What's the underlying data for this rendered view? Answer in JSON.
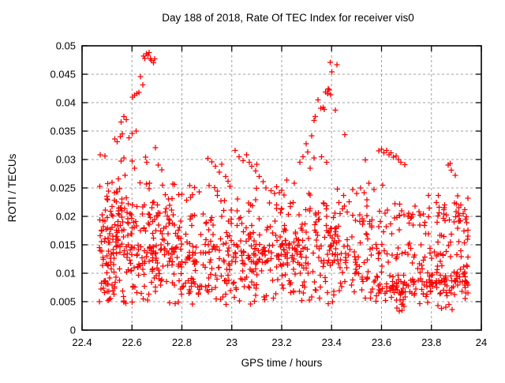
{
  "chart_data": {
    "type": "scatter",
    "title": "Day 188 of 2018, Rate Of TEC Index for receiver vis0",
    "xlabel": "GPS time / hours",
    "ylabel": "ROTI / TECUs",
    "xlim": [
      22.4,
      24
    ],
    "ylim": [
      0,
      0.05
    ],
    "xticks": [
      22.4,
      22.6,
      22.8,
      23,
      23.2,
      23.4,
      23.6,
      23.8,
      24
    ],
    "xtick_labels": [
      "22.4",
      "22.6",
      "22.8",
      "23",
      "23.2",
      "23.4",
      "23.6",
      "23.8",
      "24"
    ],
    "yticks": [
      0,
      0.005,
      0.01,
      0.015,
      0.02,
      0.025,
      0.03,
      0.035,
      0.04,
      0.045,
      0.05
    ],
    "ytick_labels": [
      "0",
      "0.005",
      "0.01",
      "0.015",
      "0.02",
      "0.025",
      "0.03",
      "0.035",
      "0.04",
      "0.045",
      "0.05"
    ],
    "grid": true,
    "grid_style": "dashed",
    "legend": "none",
    "colors": {
      "marker": "#ff0000",
      "grid": "#a0a0a0",
      "frame": "#000000",
      "background": "#ffffff"
    },
    "marker": {
      "shape": "plus",
      "size": 7
    },
    "series": [
      {
        "name": "ROTI",
        "seed": 1880718,
        "points": [
          [
            22.646,
            0.0482
          ],
          [
            22.652,
            0.0478
          ],
          [
            22.658,
            0.0486
          ],
          [
            22.664,
            0.0483
          ],
          [
            22.668,
            0.0488
          ],
          [
            22.673,
            0.0477
          ],
          [
            22.679,
            0.0474
          ],
          [
            22.686,
            0.047
          ],
          [
            22.691,
            0.0477
          ],
          [
            22.634,
            0.0446
          ],
          [
            22.643,
            0.0431
          ],
          [
            22.602,
            0.041
          ],
          [
            22.611,
            0.0413
          ],
          [
            22.62,
            0.0416
          ],
          [
            22.627,
            0.0418
          ],
          [
            22.556,
            0.0366
          ],
          [
            22.568,
            0.0376
          ],
          [
            22.577,
            0.037
          ],
          [
            22.532,
            0.0336
          ],
          [
            22.541,
            0.0331
          ],
          [
            22.553,
            0.034
          ],
          [
            22.562,
            0.0345
          ],
          [
            22.588,
            0.0338
          ],
          [
            22.6,
            0.0346
          ],
          [
            22.617,
            0.035
          ],
          [
            22.473,
            0.0308
          ],
          [
            22.492,
            0.0306
          ],
          [
            22.556,
            0.0297
          ],
          [
            22.568,
            0.0303
          ],
          [
            22.6,
            0.0297
          ],
          [
            22.611,
            0.0285
          ],
          [
            22.655,
            0.0304
          ],
          [
            22.66,
            0.0295
          ],
          [
            22.694,
            0.0321
          ],
          [
            22.705,
            0.029
          ],
          [
            22.72,
            0.0282
          ],
          [
            22.52,
            0.026
          ],
          [
            22.545,
            0.0266
          ],
          [
            22.572,
            0.0272
          ],
          [
            22.67,
            0.0258
          ],
          [
            22.76,
            0.0231
          ],
          [
            22.8,
            0.0239
          ],
          [
            22.85,
            0.0251
          ],
          [
            22.87,
            0.0243
          ],
          [
            22.905,
            0.0302
          ],
          [
            22.92,
            0.0296
          ],
          [
            22.935,
            0.0288
          ],
          [
            22.95,
            0.0278
          ],
          [
            22.96,
            0.0292
          ],
          [
            22.975,
            0.027
          ],
          [
            22.985,
            0.0262
          ],
          [
            23.013,
            0.0316
          ],
          [
            23.03,
            0.0305
          ],
          [
            23.045,
            0.0298
          ],
          [
            23.06,
            0.0308
          ],
          [
            23.07,
            0.0295
          ],
          [
            23.08,
            0.0288
          ],
          [
            23.095,
            0.028
          ],
          [
            23.1,
            0.0292
          ],
          [
            23.11,
            0.027
          ],
          [
            23.125,
            0.0261
          ],
          [
            23.137,
            0.025
          ],
          [
            23.18,
            0.0252
          ],
          [
            23.22,
            0.0264
          ],
          [
            23.25,
            0.0258
          ],
          [
            23.273,
            0.0295
          ],
          [
            23.285,
            0.0305
          ],
          [
            23.298,
            0.0328
          ],
          [
            23.304,
            0.0313
          ],
          [
            23.314,
            0.0285
          ],
          [
            23.33,
            0.0303
          ],
          [
            23.33,
            0.0369
          ],
          [
            23.334,
            0.0376
          ],
          [
            23.346,
            0.0405
          ],
          [
            23.356,
            0.039
          ],
          [
            23.366,
            0.0392
          ],
          [
            23.371,
            0.0388
          ],
          [
            23.376,
            0.0419
          ],
          [
            23.383,
            0.0416
          ],
          [
            23.386,
            0.0424
          ],
          [
            23.39,
            0.0422
          ],
          [
            23.396,
            0.0414
          ],
          [
            23.394,
            0.0471
          ],
          [
            23.401,
            0.0454
          ],
          [
            23.422,
            0.0467
          ],
          [
            23.415,
            0.0387
          ],
          [
            23.453,
            0.0344
          ],
          [
            23.36,
            0.0305
          ],
          [
            23.38,
            0.0295
          ],
          [
            23.32,
            0.0342
          ],
          [
            23.47,
            0.0226
          ],
          [
            23.484,
            0.0247
          ],
          [
            23.5,
            0.024
          ],
          [
            23.516,
            0.025
          ],
          [
            23.53,
            0.0242
          ],
          [
            23.535,
            0.0299
          ],
          [
            23.55,
            0.0258
          ],
          [
            23.57,
            0.0247
          ],
          [
            23.589,
            0.0315
          ],
          [
            23.6,
            0.0318
          ],
          [
            23.61,
            0.0312
          ],
          [
            23.62,
            0.0316
          ],
          [
            23.63,
            0.0308
          ],
          [
            23.638,
            0.0312
          ],
          [
            23.648,
            0.0304
          ],
          [
            23.658,
            0.0306
          ],
          [
            23.668,
            0.03
          ],
          [
            23.678,
            0.0295
          ],
          [
            23.693,
            0.0291
          ],
          [
            23.605,
            0.0255
          ],
          [
            23.867,
            0.029
          ],
          [
            23.875,
            0.0293
          ],
          [
            23.88,
            0.0281
          ],
          [
            23.895,
            0.0272
          ],
          [
            23.9,
            0.0222
          ],
          [
            23.91,
            0.0215
          ],
          [
            23.917,
            0.022
          ],
          [
            23.927,
            0.0205
          ],
          [
            23.934,
            0.0212
          ],
          [
            23.94,
            0.0199
          ],
          [
            23.93,
            0.0174
          ],
          [
            23.944,
            0.016
          ],
          [
            23.662,
            0.0039
          ],
          [
            23.671,
            0.0033
          ],
          [
            23.682,
            0.0035
          ],
          [
            23.69,
            0.0042
          ],
          [
            23.826,
            0.0043
          ],
          [
            23.84,
            0.0038
          ],
          [
            23.858,
            0.004
          ],
          [
            23.87,
            0.0045
          ],
          [
            23.883,
            0.0036
          ],
          [
            22.47,
            0.005
          ],
          [
            22.575,
            0.0047
          ],
          [
            22.6,
            0.0049
          ],
          [
            22.843,
            0.0046
          ],
          [
            23.31,
            0.0053
          ]
        ],
        "clusters": [
          {
            "x": [
              22.47,
              23.95
            ],
            "y": [
              0.005,
              0.021
            ],
            "n": 420,
            "dist": "tri"
          },
          {
            "x": [
              22.47,
              23.95
            ],
            "y": [
              0.0045,
              0.009
            ],
            "n": 130,
            "dist": "uni"
          },
          {
            "x": [
              22.47,
              23.95
            ],
            "y": [
              0.016,
              0.0235
            ],
            "n": 150,
            "dist": "tri"
          },
          {
            "x": [
              22.47,
              22.56
            ],
            "y": [
              0.006,
              0.025
            ],
            "n": 55,
            "dist": "uni"
          },
          {
            "x": [
              22.47,
              22.8
            ],
            "y": [
              0.008,
              0.02
            ],
            "n": 90,
            "dist": "tri"
          },
          {
            "x": [
              23.55,
              23.95
            ],
            "y": [
              0.005,
              0.011
            ],
            "n": 90,
            "dist": "tri"
          },
          {
            "x": [
              22.95,
              23.5
            ],
            "y": [
              0.008,
              0.018
            ],
            "n": 110,
            "dist": "tri"
          },
          {
            "x": [
              22.85,
              23.45
            ],
            "y": [
              0.021,
              0.026
            ],
            "n": 30,
            "dist": "uni"
          },
          {
            "x": [
              23.5,
              23.95
            ],
            "y": [
              0.019,
              0.024
            ],
            "n": 25,
            "dist": "uni"
          },
          {
            "x": [
              22.47,
              22.85
            ],
            "y": [
              0.02,
              0.026
            ],
            "n": 35,
            "dist": "uni"
          }
        ]
      }
    ]
  }
}
